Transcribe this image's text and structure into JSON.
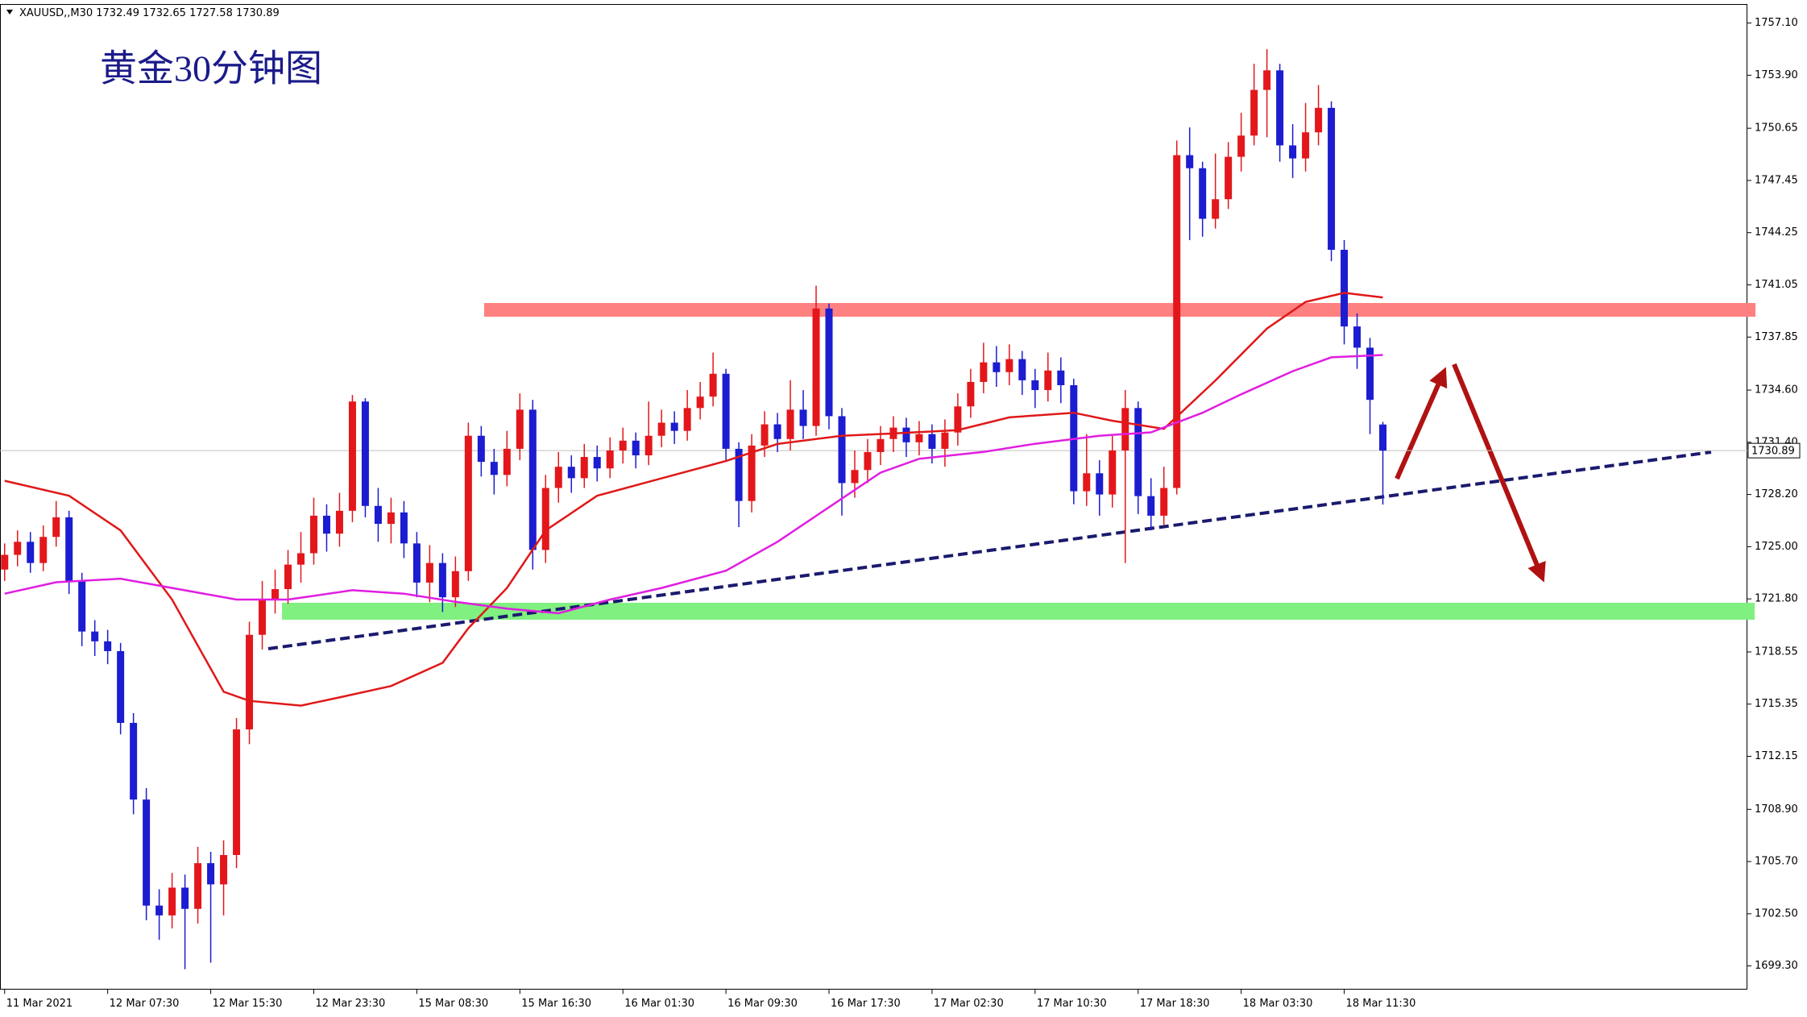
{
  "chart_data": {
    "type": "candlestick",
    "title": "黄金30分钟图",
    "symbol": "XAUUSD,,M30",
    "up_color": "#e3171b",
    "down_color": "#1c1cd0",
    "x": [
      0,
      1,
      2,
      3,
      4,
      5,
      6,
      7,
      8,
      9,
      10,
      11,
      12,
      13,
      14,
      15,
      16,
      17,
      18,
      19,
      20,
      21,
      22,
      23,
      24,
      25,
      26,
      27,
      28,
      29,
      30,
      31,
      32,
      33,
      34,
      35,
      36,
      37,
      38,
      39,
      40,
      41,
      42,
      43,
      44,
      45,
      46,
      47,
      48,
      49,
      50,
      51,
      52,
      53,
      54,
      55,
      56,
      57,
      58,
      59,
      60,
      61,
      62,
      63,
      64,
      65,
      66,
      67,
      68,
      69,
      70,
      71,
      72,
      73,
      74,
      75,
      76,
      77,
      78,
      79,
      80,
      81,
      82,
      83,
      84,
      85,
      86,
      87,
      88,
      89,
      90,
      91,
      92,
      93,
      94,
      95,
      96,
      97,
      98,
      99,
      100,
      101,
      102,
      103,
      104,
      105,
      106,
      107
    ],
    "open": [
      1723.6,
      1724.5,
      1725.3,
      1724.0,
      1725.6,
      1726.8,
      1722.9,
      1719.8,
      1719.2,
      1718.6,
      1714.2,
      1709.5,
      1703.0,
      1702.4,
      1704.1,
      1702.8,
      1705.6,
      1704.3,
      1706.1,
      1713.8,
      1719.6,
      1721.8,
      1722.4,
      1723.9,
      1724.6,
      1726.9,
      1725.8,
      1727.2,
      1733.9,
      1727.5,
      1726.4,
      1727.1,
      1725.2,
      1722.8,
      1724.0,
      1721.9,
      1723.5,
      1731.8,
      1730.2,
      1729.4,
      1731.0,
      1733.4,
      1724.8,
      1728.6,
      1729.9,
      1729.2,
      1730.5,
      1729.8,
      1730.9,
      1731.5,
      1730.6,
      1731.8,
      1732.6,
      1732.1,
      1733.5,
      1734.2,
      1735.6,
      1731.0,
      1727.8,
      1731.2,
      1732.5,
      1731.6,
      1733.4,
      1732.4,
      1739.6,
      1733.0,
      1728.9,
      1729.7,
      1730.8,
      1731.6,
      1732.3,
      1731.4,
      1731.9,
      1731.0,
      1732.0,
      1733.6,
      1735.1,
      1736.3,
      1735.7,
      1736.5,
      1735.2,
      1734.6,
      1735.8,
      1734.9,
      1728.4,
      1729.5,
      1728.2,
      1730.9,
      1733.5,
      1728.1,
      1726.9,
      1728.6,
      1749.0,
      1748.2,
      1745.1,
      1746.3,
      1748.9,
      1750.2,
      1753.0,
      1754.2,
      1749.6,
      1748.8,
      1750.4,
      1751.9,
      1743.2,
      1738.5,
      1737.2,
      1732.49
    ],
    "high": [
      1725.2,
      1726.0,
      1725.9,
      1726.3,
      1727.8,
      1727.2,
      1723.4,
      1720.5,
      1719.9,
      1719.1,
      1714.8,
      1710.2,
      1704.0,
      1705.0,
      1704.9,
      1706.6,
      1706.3,
      1707.0,
      1714.5,
      1720.4,
      1722.9,
      1723.6,
      1724.8,
      1725.9,
      1728.0,
      1727.6,
      1728.3,
      1734.3,
      1734.1,
      1728.6,
      1728.0,
      1727.8,
      1725.9,
      1725.1,
      1724.6,
      1724.4,
      1732.6,
      1732.4,
      1731.0,
      1732.1,
      1734.4,
      1734.0,
      1729.4,
      1730.8,
      1730.6,
      1731.3,
      1731.2,
      1731.7,
      1732.3,
      1732.0,
      1733.9,
      1733.4,
      1733.3,
      1734.6,
      1735.1,
      1736.9,
      1735.9,
      1731.4,
      1731.9,
      1733.3,
      1733.2,
      1735.2,
      1734.6,
      1741.0,
      1739.9,
      1733.5,
      1730.9,
      1731.6,
      1732.4,
      1733.0,
      1732.9,
      1732.7,
      1732.5,
      1732.8,
      1734.4,
      1735.9,
      1737.5,
      1737.3,
      1737.4,
      1737.0,
      1735.9,
      1736.9,
      1736.6,
      1735.3,
      1731.9,
      1730.3,
      1731.8,
      1734.6,
      1733.9,
      1729.2,
      1729.9,
      1749.9,
      1750.7,
      1748.6,
      1749.1,
      1749.8,
      1751.6,
      1754.6,
      1755.5,
      1754.6,
      1750.9,
      1752.2,
      1753.3,
      1752.3,
      1743.8,
      1739.3,
      1737.8,
      1732.65
    ],
    "low": [
      1722.9,
      1723.8,
      1723.4,
      1723.5,
      1725.0,
      1722.1,
      1718.9,
      1718.3,
      1717.8,
      1713.5,
      1708.6,
      1702.1,
      1700.9,
      1701.6,
      1699.1,
      1701.9,
      1699.5,
      1702.4,
      1705.3,
      1712.9,
      1718.7,
      1720.9,
      1721.5,
      1722.8,
      1723.9,
      1724.7,
      1725.0,
      1726.5,
      1726.8,
      1725.3,
      1725.2,
      1724.3,
      1721.9,
      1721.6,
      1721.0,
      1721.3,
      1722.9,
      1729.3,
      1728.2,
      1728.7,
      1730.3,
      1723.6,
      1724.0,
      1727.7,
      1728.3,
      1728.6,
      1729.0,
      1729.2,
      1730.1,
      1729.8,
      1730.0,
      1731.1,
      1731.3,
      1731.5,
      1732.8,
      1733.6,
      1730.2,
      1726.2,
      1727.1,
      1730.5,
      1730.8,
      1730.9,
      1731.6,
      1731.8,
      1732.2,
      1726.9,
      1728.0,
      1728.9,
      1730.0,
      1730.8,
      1730.5,
      1730.6,
      1730.1,
      1729.9,
      1731.2,
      1732.9,
      1734.4,
      1734.8,
      1734.9,
      1734.3,
      1733.5,
      1733.9,
      1733.8,
      1727.6,
      1727.5,
      1726.9,
      1727.4,
      1724.0,
      1727.0,
      1726.0,
      1726.3,
      1728.2,
      1743.8,
      1744.0,
      1744.5,
      1745.7,
      1748.0,
      1749.6,
      1750.1,
      1748.6,
      1747.6,
      1748.0,
      1749.6,
      1742.5,
      1737.4,
      1735.9,
      1731.9,
      1727.58
    ],
    "close": [
      1724.5,
      1725.3,
      1724.0,
      1725.6,
      1726.8,
      1722.9,
      1719.8,
      1719.2,
      1718.6,
      1714.2,
      1709.5,
      1703.0,
      1702.4,
      1704.1,
      1702.8,
      1705.6,
      1704.3,
      1706.1,
      1713.8,
      1719.6,
      1721.8,
      1722.4,
      1723.9,
      1724.6,
      1726.9,
      1725.8,
      1727.2,
      1733.9,
      1727.5,
      1726.4,
      1727.1,
      1725.2,
      1722.8,
      1724.0,
      1721.9,
      1723.5,
      1731.8,
      1730.2,
      1729.4,
      1731.0,
      1733.4,
      1724.8,
      1728.6,
      1729.9,
      1729.2,
      1730.5,
      1729.8,
      1730.9,
      1731.5,
      1730.6,
      1731.8,
      1732.6,
      1732.1,
      1733.5,
      1734.2,
      1735.6,
      1731.0,
      1727.8,
      1731.2,
      1732.5,
      1731.6,
      1733.4,
      1732.4,
      1739.6,
      1733.0,
      1728.9,
      1729.7,
      1730.8,
      1731.6,
      1732.3,
      1731.4,
      1731.9,
      1731.0,
      1732.0,
      1733.6,
      1735.1,
      1736.3,
      1735.7,
      1736.5,
      1735.2,
      1734.6,
      1735.8,
      1734.9,
      1728.4,
      1729.5,
      1728.2,
      1730.9,
      1733.5,
      1728.1,
      1726.9,
      1728.6,
      1749.0,
      1748.2,
      1745.1,
      1746.3,
      1748.9,
      1750.2,
      1753.0,
      1754.2,
      1749.6,
      1748.8,
      1750.4,
      1751.9,
      1743.2,
      1738.5,
      1737.2,
      1734.0,
      1730.89
    ],
    "moving_averages": [
      {
        "color": "#e01818",
        "x": [
          0,
          5,
          9,
          13,
          17,
          19,
          23,
          26,
          30,
          34,
          36,
          39,
          42,
          46,
          51,
          56,
          60,
          65,
          69,
          74,
          78,
          83,
          86,
          90,
          94,
          98,
          101,
          104,
          107
        ],
        "values": [
          1729.04,
          1728.12,
          1726.0,
          1721.76,
          1716.11,
          1715.55,
          1715.26,
          1715.76,
          1716.46,
          1717.88,
          1720.0,
          1722.47,
          1726.0,
          1728.12,
          1729.19,
          1730.25,
          1731.3,
          1731.8,
          1731.94,
          1732.15,
          1732.93,
          1733.21,
          1732.72,
          1732.22,
          1735.19,
          1738.37,
          1740.0,
          1740.56,
          1740.28
        ]
      },
      {
        "color": "#e01ee0",
        "x": [
          0,
          4,
          9,
          13,
          18,
          22,
          27,
          31,
          35,
          39,
          43,
          47,
          51,
          56,
          60,
          64,
          68,
          71,
          76,
          80,
          85,
          89,
          93,
          96,
          100,
          103,
          107
        ],
        "values": [
          1722.12,
          1722.82,
          1723.04,
          1722.47,
          1721.76,
          1721.76,
          1722.33,
          1722.12,
          1721.62,
          1721.2,
          1720.92,
          1721.76,
          1722.47,
          1723.53,
          1725.3,
          1727.42,
          1729.54,
          1730.39,
          1730.81,
          1731.31,
          1731.8,
          1732.01,
          1733.21,
          1734.34,
          1735.76,
          1736.61,
          1736.75
        ]
      }
    ],
    "last_price": 1730.89,
    "xlim": [
      -0.36,
      135.3
    ],
    "ylim": [
      1697.88,
      1758.23
    ],
    "yticks": [
      {
        "value": 1699.3,
        "label": "1699.30"
      },
      {
        "value": 1702.5,
        "label": "1702.50"
      },
      {
        "value": 1705.7,
        "label": "1705.70"
      },
      {
        "value": 1708.9,
        "label": "1708.90"
      },
      1712.15,
      1715.35,
      1718.55,
      {
        "value": 1721.8,
        "label": "1721.80"
      },
      {
        "value": 1725.0,
        "label": "1725.00"
      },
      {
        "value": 1728.2,
        "label": "1728.20"
      },
      {
        "value": 1731.4,
        "label": "1731.40"
      },
      {
        "value": 1734.6,
        "label": "1734.60"
      },
      1737.85,
      {
        "value": 1741.05,
        "label": "1741.05"
      },
      1744.25,
      1747.45,
      1750.65,
      {
        "value": 1753.9,
        "label": "1753.90"
      },
      {
        "value": 1757.1,
        "label": "1757.10"
      }
    ],
    "xticks": [
      {
        "value": 0,
        "label": "11 Mar 2021"
      },
      {
        "value": 8,
        "label": "12 Mar 07:30"
      },
      {
        "value": 16,
        "label": "12 Mar 15:30"
      },
      {
        "value": 24,
        "label": "12 Mar 23:30"
      },
      {
        "value": 32,
        "label": "15 Mar 08:30"
      },
      {
        "value": 40,
        "label": "15 Mar 16:30"
      },
      {
        "value": 48,
        "label": "16 Mar 01:30"
      },
      {
        "value": 56,
        "label": "16 Mar 09:30"
      },
      {
        "value": 64,
        "label": "16 Mar 17:30"
      },
      {
        "value": 72,
        "label": "17 Mar 02:30"
      },
      {
        "value": 80,
        "label": "17 Mar 10:30"
      },
      {
        "value": 88,
        "label": "17 Mar 18:30"
      },
      {
        "value": 96,
        "label": "18 Mar 03:30"
      },
      {
        "value": 104,
        "label": "18 Mar 11:30"
      }
    ]
  }
}
